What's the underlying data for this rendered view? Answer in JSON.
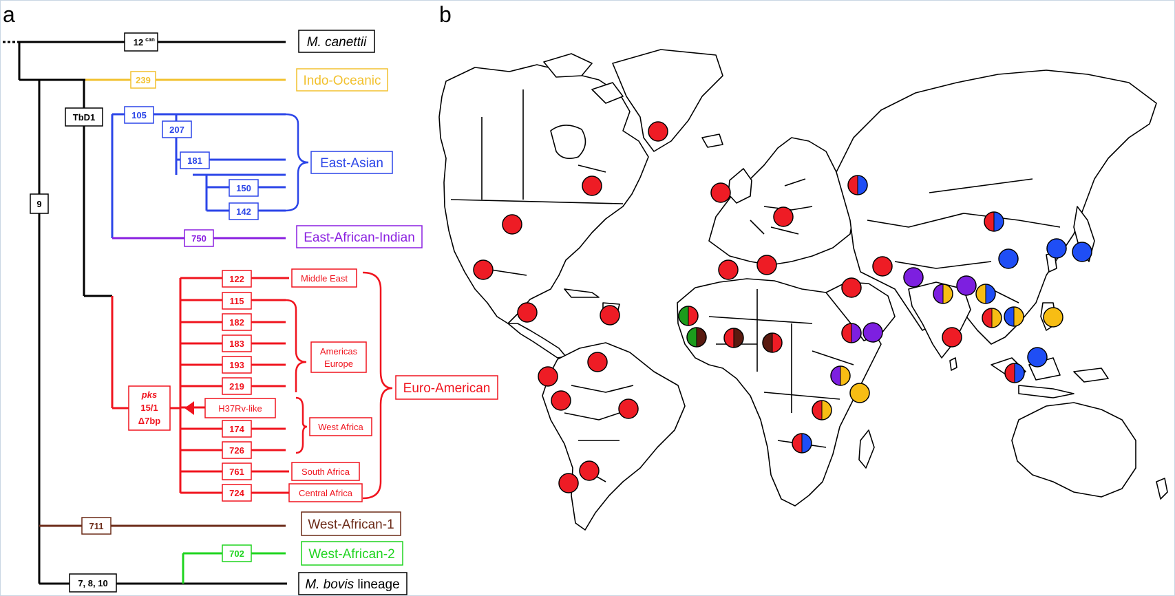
{
  "panel_labels": {
    "a": "a",
    "b": "b"
  },
  "tree": {
    "branch_markers": {
      "can": "12",
      "can_sup": "can",
      "indo": "239",
      "tbd1": "TbD1",
      "rd9": "9",
      "ea105": "105",
      "ea207": "207",
      "ea181": "181",
      "ea150": "150",
      "ea142": "142",
      "eai750": "750",
      "eu122": "122",
      "eu115": "115",
      "eu182": "182",
      "eu183": "183",
      "eu193": "193",
      "eu219": "219",
      "eu174": "174",
      "eu726": "726",
      "eu761": "761",
      "eu724": "724",
      "pks_title": "pks",
      "pks_line2": "15/1",
      "pks_line3": "Δ7bp",
      "wa1_711": "711",
      "wa2_702": "702",
      "bovis_markers": "7, 8, 10"
    },
    "lineages": {
      "canettii": "M. canettii",
      "indo": "Indo-Oceanic",
      "east_asian": "East-Asian",
      "eai": "East-African-Indian",
      "euro": "Euro-American",
      "wa1": "West-African-1",
      "wa2": "West-African-2",
      "bovis_italic": "M. bovis",
      "bovis_rest": " lineage"
    },
    "sublineages": {
      "middle_east": "Middle East",
      "americas": "Americas",
      "europe": "Europe",
      "h37rv": "H37Rv-like",
      "west_africa": "West Africa",
      "south_africa": "South Africa",
      "central_africa": "Central Africa"
    },
    "colors": {
      "black": "#000000",
      "indo": "#f2c12e",
      "east_asian": "#2b45e8",
      "eai": "#8a1fe0",
      "euro": "#f0141e",
      "wa1": "#6b2a17",
      "wa2": "#1fd41f"
    }
  },
  "map": {
    "legend_colors": {
      "red": "#ee1c25",
      "blue": "#1f4ef5",
      "purple": "#7d1fe0",
      "yellow": "#f7bd14",
      "green": "#1c9b1c",
      "brown": "#5a1a10"
    },
    "markers": [
      {
        "region": "Greenland",
        "colors": [
          "red"
        ]
      },
      {
        "region": "Canada",
        "colors": [
          "red"
        ]
      },
      {
        "region": "USA",
        "colors": [
          "red"
        ]
      },
      {
        "region": "Mexico",
        "colors": [
          "red"
        ]
      },
      {
        "region": "Central America",
        "colors": [
          "red"
        ]
      },
      {
        "region": "Caribbean",
        "colors": [
          "red"
        ]
      },
      {
        "region": "Colombia",
        "colors": [
          "red"
        ]
      },
      {
        "region": "Venezuela",
        "colors": [
          "red"
        ]
      },
      {
        "region": "Peru",
        "colors": [
          "red"
        ]
      },
      {
        "region": "Brazil",
        "colors": [
          "red"
        ]
      },
      {
        "region": "Chile",
        "colors": [
          "red"
        ]
      },
      {
        "region": "Argentina",
        "colors": [
          "red"
        ]
      },
      {
        "region": "UK",
        "colors": [
          "red"
        ]
      },
      {
        "region": "Russia",
        "colors": [
          "red",
          "blue"
        ]
      },
      {
        "region": "Europe",
        "colors": [
          "red"
        ]
      },
      {
        "region": "Spain",
        "colors": [
          "red"
        ]
      },
      {
        "region": "Italy",
        "colors": [
          "red"
        ]
      },
      {
        "region": "Turkey",
        "colors": [
          "red"
        ]
      },
      {
        "region": "Egypt",
        "colors": [
          "red"
        ]
      },
      {
        "region": "Mongolia",
        "colors": [
          "red",
          "blue"
        ]
      },
      {
        "region": "China",
        "colors": [
          "blue"
        ]
      },
      {
        "region": "Korea",
        "colors": [
          "blue"
        ]
      },
      {
        "region": "Japan",
        "colors": [
          "blue"
        ]
      },
      {
        "region": "India",
        "colors": [
          "purple",
          "yellow"
        ]
      },
      {
        "region": "Pakistan",
        "colors": [
          "purple"
        ]
      },
      {
        "region": "Bangladesh",
        "colors": [
          "purple"
        ]
      },
      {
        "region": "Myanmar",
        "colors": [
          "yellow",
          "blue"
        ]
      },
      {
        "region": "Thailand",
        "colors": [
          "red",
          "yellow"
        ]
      },
      {
        "region": "Vietnam",
        "colors": [
          "blue",
          "yellow"
        ]
      },
      {
        "region": "Philippines",
        "colors": [
          "yellow"
        ]
      },
      {
        "region": "Indonesia",
        "colors": [
          "blue"
        ]
      },
      {
        "region": "Malaysia",
        "colors": [
          "red",
          "blue"
        ]
      },
      {
        "region": "Sri Lanka",
        "colors": [
          "red"
        ]
      },
      {
        "region": "Gambia",
        "colors": [
          "green",
          "red"
        ]
      },
      {
        "region": "Guinea-Bissau",
        "colors": [
          "green",
          "brown"
        ]
      },
      {
        "region": "Ghana",
        "colors": [
          "red",
          "brown"
        ]
      },
      {
        "region": "Nigeria",
        "colors": [
          "brown",
          "red"
        ]
      },
      {
        "region": "Ethiopia",
        "colors": [
          "purple"
        ]
      },
      {
        "region": "Uganda",
        "colors": [
          "red",
          "purple"
        ]
      },
      {
        "region": "Tanzania",
        "colors": [
          "purple",
          "yellow"
        ]
      },
      {
        "region": "Mozambique",
        "colors": [
          "yellow"
        ]
      },
      {
        "region": "Zimbabwe",
        "colors": [
          "red",
          "yellow"
        ]
      },
      {
        "region": "South Africa",
        "colors": [
          "red",
          "blue"
        ]
      }
    ]
  }
}
